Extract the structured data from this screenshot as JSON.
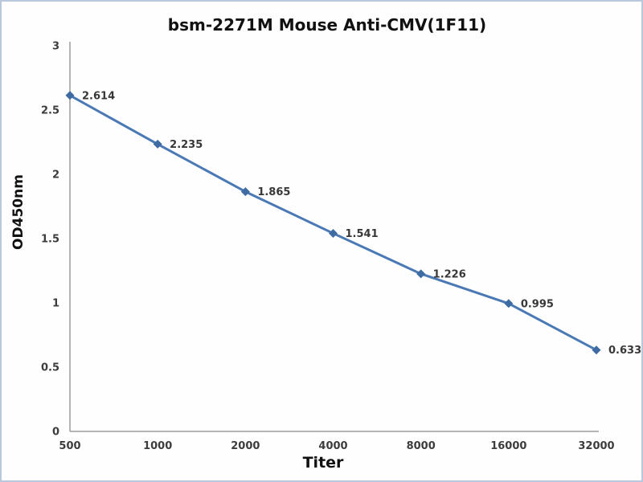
{
  "chart_data": {
    "type": "line",
    "title": "bsm-2271M Mouse Anti-CMV(1F11)",
    "xlabel": "Titer",
    "ylabel": "OD450nm",
    "categories": [
      "500",
      "1000",
      "2000",
      "4000",
      "8000",
      "16000",
      "32000"
    ],
    "series": [
      {
        "name": "OD450nm",
        "values": [
          2.614,
          2.235,
          1.865,
          1.541,
          1.226,
          0.995,
          0.633
        ],
        "point_labels": [
          "2.614",
          "2.235",
          "1.865",
          "1.541",
          "1.226",
          "0.995",
          "0.633"
        ]
      }
    ],
    "ylim": [
      0,
      3
    ],
    "yticks": [
      {
        "value": 3,
        "label": "3"
      },
      {
        "value": 2.5,
        "label": "2.5"
      },
      {
        "value": 2,
        "label": "2"
      },
      {
        "value": 1.5,
        "label": "1.5"
      },
      {
        "value": 1,
        "label": "1"
      },
      {
        "value": 0.5,
        "label": "0.5"
      },
      {
        "value": 0,
        "label": "0"
      }
    ],
    "grid": false,
    "legend_position": "none",
    "marker": "diamond",
    "colors": {
      "line": "#4a79b5",
      "marker": "#3f6ba3",
      "axis": "#9b9b9b",
      "tick_text": "#3c3c3c",
      "title_text": "#111111",
      "border": "#b9c8dc",
      "background": "#fefefe"
    }
  }
}
